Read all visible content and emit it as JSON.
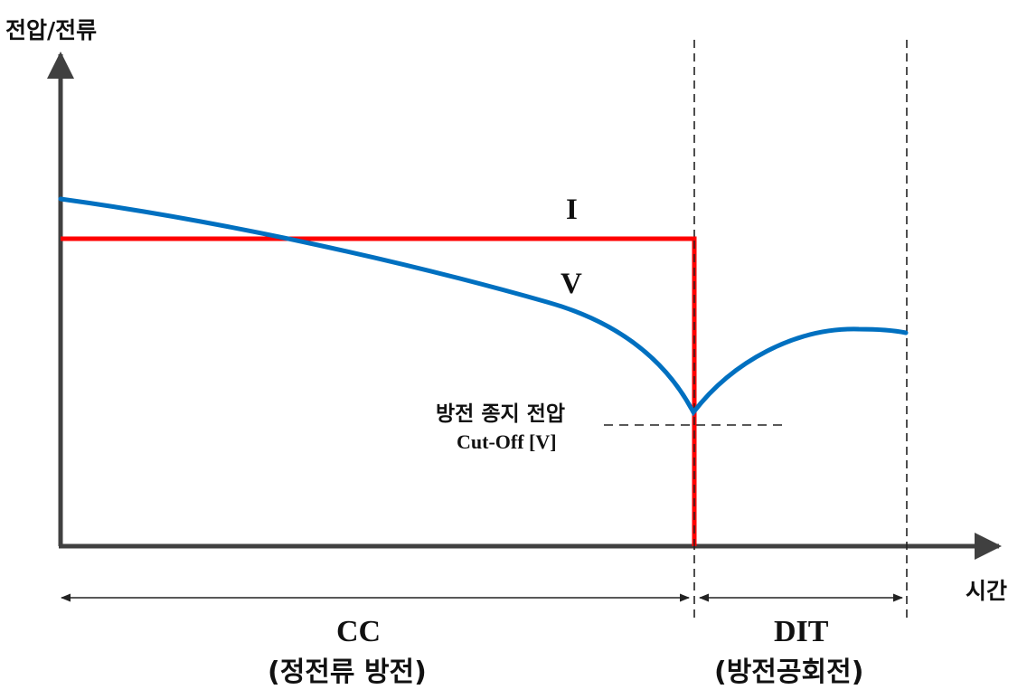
{
  "axes": {
    "y_label": "전압/전류",
    "x_label": "시간"
  },
  "curves": {
    "current_label": "I",
    "voltage_label": "V",
    "current_color": "#ff0000",
    "voltage_color": "#0070c0"
  },
  "cutoff": {
    "label_kr": "방전 종지 전압",
    "label_en": "Cut-Off [V]"
  },
  "phases": {
    "cc_label": "CC",
    "cc_desc": "(정전류 방전)",
    "dit_label": "DIT",
    "dit_desc": "(방전공회전)"
  }
}
